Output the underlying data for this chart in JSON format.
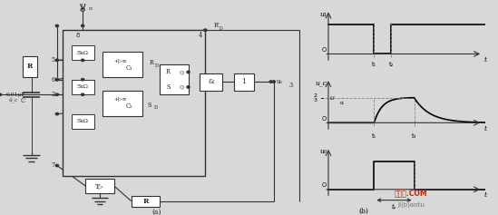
{
  "bg_color": "#d8d8d8",
  "fig_width": 5.49,
  "fig_height": 2.37,
  "waveform_t1": 3.2,
  "waveform_t2": 4.4,
  "waveform_t3": 6.0,
  "label_a": "(a)",
  "label_b": "(b)",
  "watermark1": "接线图.COM",
  "watermark2": "ji(b)antu",
  "watermark_color": "#cc2200"
}
